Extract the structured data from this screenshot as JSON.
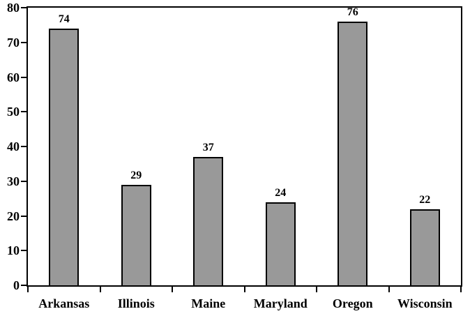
{
  "chart_data": {
    "type": "bar",
    "categories": [
      "Arkansas",
      "Illinois",
      "Maine",
      "Maryland",
      "Oregon",
      "Wisconsin"
    ],
    "values": [
      74,
      29,
      37,
      24,
      76,
      22
    ],
    "data_labels": [
      "74",
      "29",
      "37",
      "24",
      "76",
      "22"
    ],
    "title": "",
    "xlabel": "",
    "ylabel": "",
    "ylim": [
      0,
      80
    ],
    "y_ticks": [
      0,
      10,
      20,
      30,
      40,
      50,
      60,
      70,
      80
    ],
    "grid": false,
    "legend": "none",
    "bar_fill_color": "#999999",
    "bar_border_color": "#000000",
    "plot_border_color": "#000000",
    "background_color": "#ffffff",
    "text_color": "#000000"
  }
}
